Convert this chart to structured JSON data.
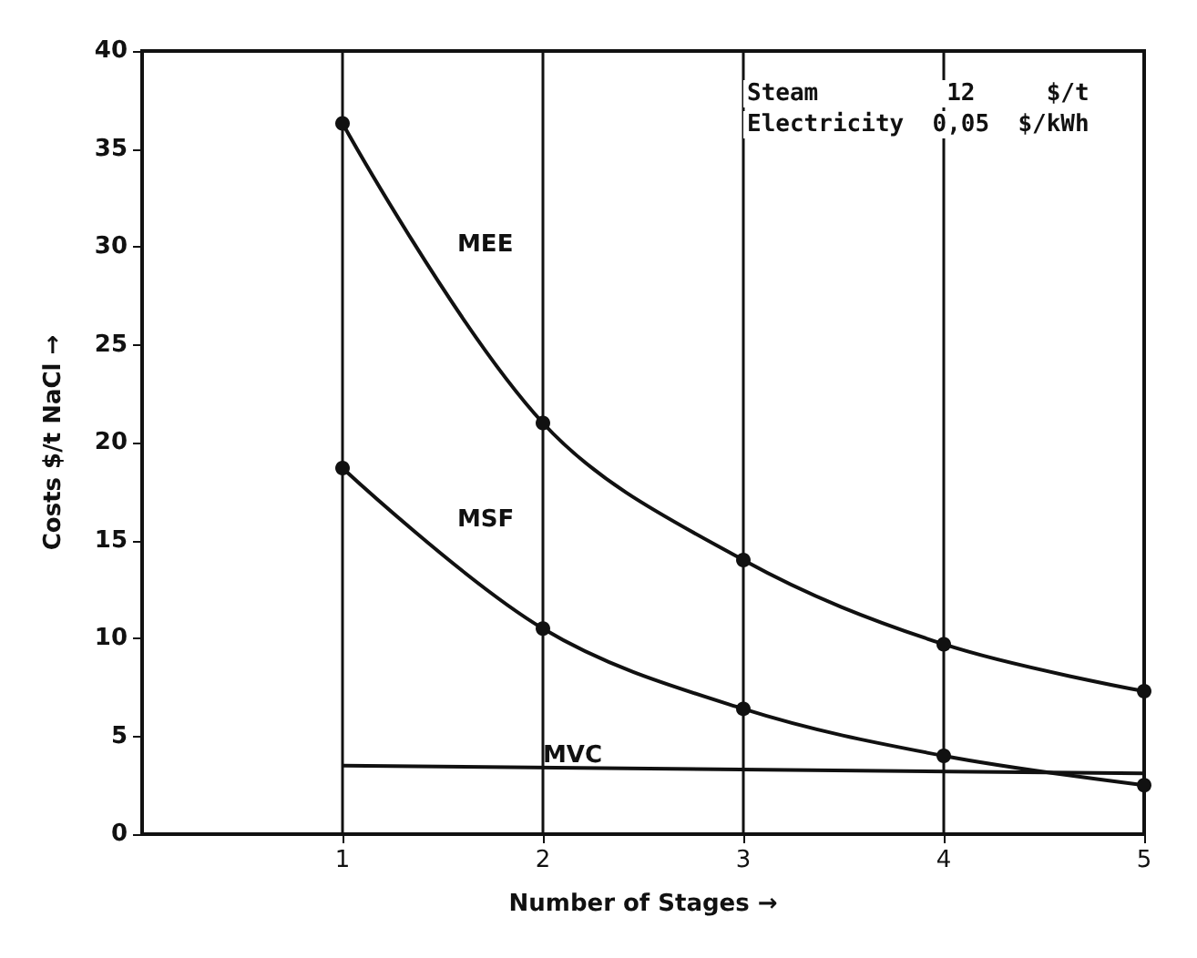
{
  "chart_data": {
    "type": "line",
    "x": [
      1,
      2,
      3,
      4,
      5
    ],
    "series": [
      {
        "name": "MEE",
        "color": "#111111",
        "values": [
          36.3,
          21,
          14,
          9.7,
          7.3
        ]
      },
      {
        "name": "MSF",
        "color": "#111111",
        "values": [
          18.7,
          10.5,
          6.4,
          4.0,
          2.5
        ]
      },
      {
        "name": "MVC",
        "color": "#111111",
        "values": [
          3.5,
          null,
          null,
          null,
          3.1
        ],
        "marker": "none"
      }
    ],
    "xlabel": "Number of Stages →",
    "ylabel": "Costs $/t NaCl →",
    "annotations": [
      "Steam         12     $/t",
      "Electricity  0,05  $/kWh"
    ],
    "xlim": [
      0,
      5
    ],
    "xticks": [
      1,
      2,
      3,
      4,
      5
    ],
    "ylim": [
      0,
      40
    ],
    "yticks": [
      0,
      5,
      10,
      15,
      20,
      25,
      30,
      35,
      40
    ],
    "grid": "x",
    "marker": "circle",
    "line_style": "solid",
    "legend": false
  }
}
